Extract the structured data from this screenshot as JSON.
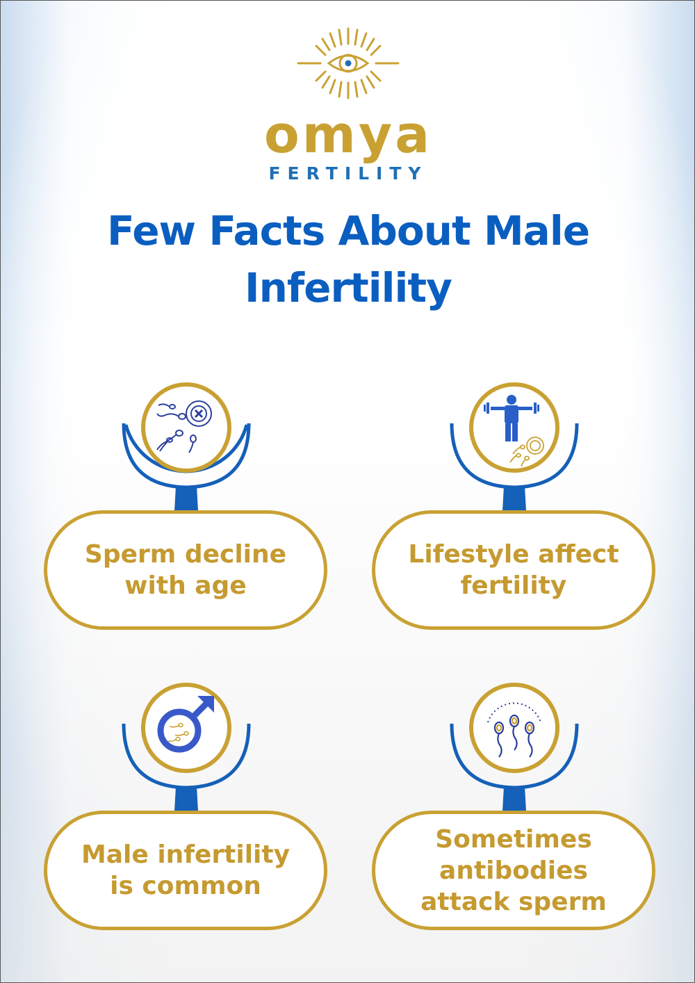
{
  "brand": {
    "name": "omya",
    "subtitle": "FERTILITY",
    "gold": "#c9a133",
    "blue": "#1f6fb5"
  },
  "title": "Few Facts About Male Infertility",
  "title_color": "#0a5ec0",
  "facts": [
    {
      "text": "Sperm decline with age",
      "icon": "sperm-egg-blocked-icon"
    },
    {
      "text": "Lifestyle affect fertility",
      "icon": "exercise-lifestyle-icon"
    },
    {
      "text": "Male infertility is common",
      "icon": "male-symbol-icon"
    },
    {
      "text": "Sometimes antibodies attack sperm",
      "icon": "antibodies-sperm-icon"
    }
  ]
}
